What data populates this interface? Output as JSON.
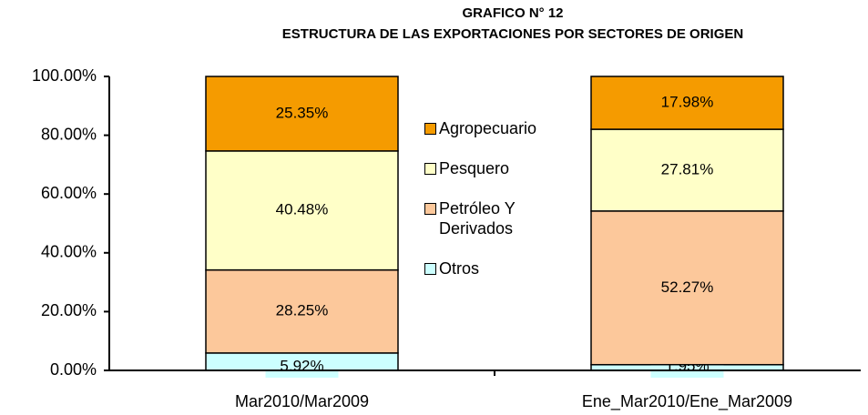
{
  "chart_data": {
    "type": "stacked-bar",
    "title": "GRAFICO N° 12",
    "subtitle": "ESTRUCTURA DE LAS EXPORTACIONES POR SECTORES DE ORIGEN",
    "categories": [
      "Mar2010/Mar2009",
      "Ene_Mar2010/Ene_Mar2009"
    ],
    "series": [
      {
        "name": "Otros",
        "color": "#ccffff",
        "values": [
          5.92,
          1.95
        ],
        "value_labels": [
          "5.92%",
          "1.95%"
        ]
      },
      {
        "name": "Petróleo Y Derivados",
        "color": "#fcc89b",
        "values": [
          28.25,
          52.27
        ],
        "value_labels": [
          "28.25%",
          "52.27%"
        ]
      },
      {
        "name": "Pesquero",
        "color": "#ffffc8",
        "values": [
          40.48,
          27.81
        ],
        "value_labels": [
          "40.48%",
          "27.81%"
        ]
      },
      {
        "name": "Agropecuario",
        "color": "#f59b00",
        "values": [
          25.35,
          17.98
        ],
        "value_labels": [
          "25.35%",
          "17.98%"
        ]
      }
    ],
    "ylim": [
      0,
      100
    ],
    "yticks": [
      {
        "value": 0,
        "label": "0.00%"
      },
      {
        "value": 20,
        "label": "20.00%"
      },
      {
        "value": 40,
        "label": "40.00%"
      },
      {
        "value": 60,
        "label": "60.00%"
      },
      {
        "value": 80,
        "label": "80.00%"
      },
      {
        "value": 100,
        "label": "100.00%"
      }
    ],
    "grid": false
  }
}
